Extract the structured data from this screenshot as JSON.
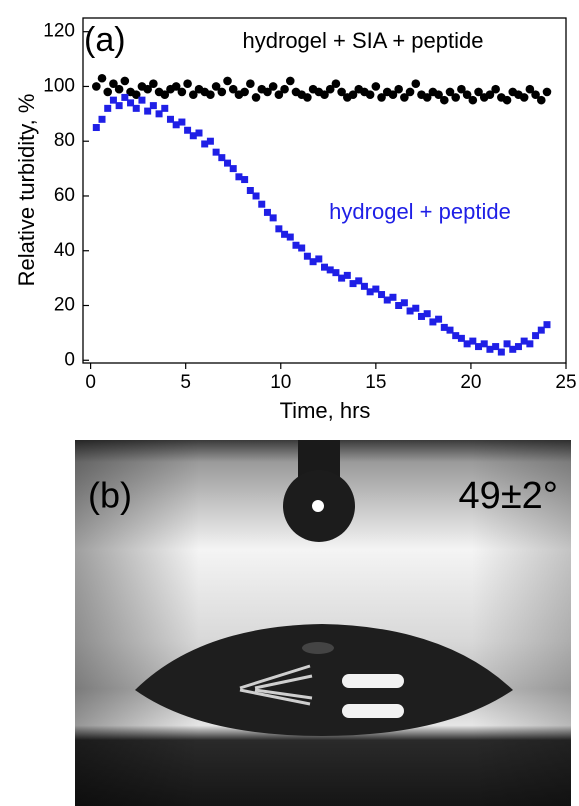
{
  "chart_data": {
    "type": "scatter",
    "panel_label": "(a)",
    "x_label": "Time, hrs",
    "y_label": "Relative turbidity, %",
    "xlim": [
      -0.4,
      25
    ],
    "ylim": [
      -1,
      125
    ],
    "xticks": [
      0,
      5,
      10,
      15,
      20,
      25
    ],
    "yticks": [
      0,
      20,
      40,
      60,
      80,
      100,
      120
    ],
    "x": [
      0.3,
      0.6,
      0.9,
      1.2,
      1.5,
      1.8,
      2.1,
      2.4,
      2.7,
      3.0,
      3.3,
      3.6,
      3.9,
      4.2,
      4.5,
      4.8,
      5.1,
      5.4,
      5.7,
      6.0,
      6.3,
      6.6,
      6.9,
      7.2,
      7.5,
      7.8,
      8.1,
      8.4,
      8.7,
      9.0,
      9.3,
      9.6,
      9.9,
      10.2,
      10.5,
      10.8,
      11.1,
      11.4,
      11.7,
      12.0,
      12.3,
      12.6,
      12.9,
      13.2,
      13.5,
      13.8,
      14.1,
      14.4,
      14.7,
      15.0,
      15.3,
      15.6,
      15.9,
      16.2,
      16.5,
      16.8,
      17.1,
      17.4,
      17.7,
      18.0,
      18.3,
      18.6,
      18.9,
      19.2,
      19.5,
      19.8,
      20.1,
      20.4,
      20.7,
      21.0,
      21.3,
      21.6,
      21.9,
      22.2,
      22.5,
      22.8,
      23.1,
      23.4,
      23.7,
      24.0
    ],
    "series": [
      {
        "name": "hydrogel + SIA + peptide",
        "color": "#000000",
        "marker": "circle",
        "values": [
          100,
          103,
          98,
          101,
          99,
          102,
          98,
          97,
          100,
          99,
          101,
          98,
          97,
          99,
          100,
          98,
          101,
          97,
          99,
          98,
          97,
          100,
          98,
          102,
          99,
          97,
          98,
          101,
          96,
          99,
          98,
          100,
          97,
          99,
          102,
          98,
          97,
          96,
          99,
          98,
          97,
          99,
          101,
          98,
          96,
          97,
          99,
          98,
          97,
          100,
          96,
          98,
          97,
          99,
          96,
          98,
          101,
          97,
          96,
          98,
          97,
          95,
          98,
          96,
          99,
          97,
          95,
          98,
          96,
          97,
          99,
          96,
          95,
          98,
          97,
          96,
          99,
          97,
          95,
          98
        ]
      },
      {
        "name": "hydrogel + peptide",
        "color": "#1f1fe6",
        "marker": "square",
        "values": [
          85,
          88,
          92,
          95,
          93,
          96,
          94,
          92,
          95,
          91,
          93,
          90,
          92,
          88,
          86,
          87,
          84,
          82,
          83,
          79,
          80,
          76,
          74,
          72,
          70,
          67,
          66,
          62,
          60,
          57,
          54,
          52,
          48,
          46,
          45,
          42,
          41,
          38,
          36,
          37,
          34,
          33,
          32,
          30,
          31,
          28,
          29,
          27,
          25,
          26,
          24,
          22,
          23,
          20,
          21,
          18,
          19,
          16,
          17,
          14,
          15,
          12,
          11,
          9,
          8,
          6,
          7,
          5,
          6,
          4,
          5,
          3,
          6,
          4,
          5,
          7,
          6,
          9,
          11,
          13
        ]
      }
    ]
  },
  "photo": {
    "label": "(b)",
    "angle": "49±2°"
  }
}
